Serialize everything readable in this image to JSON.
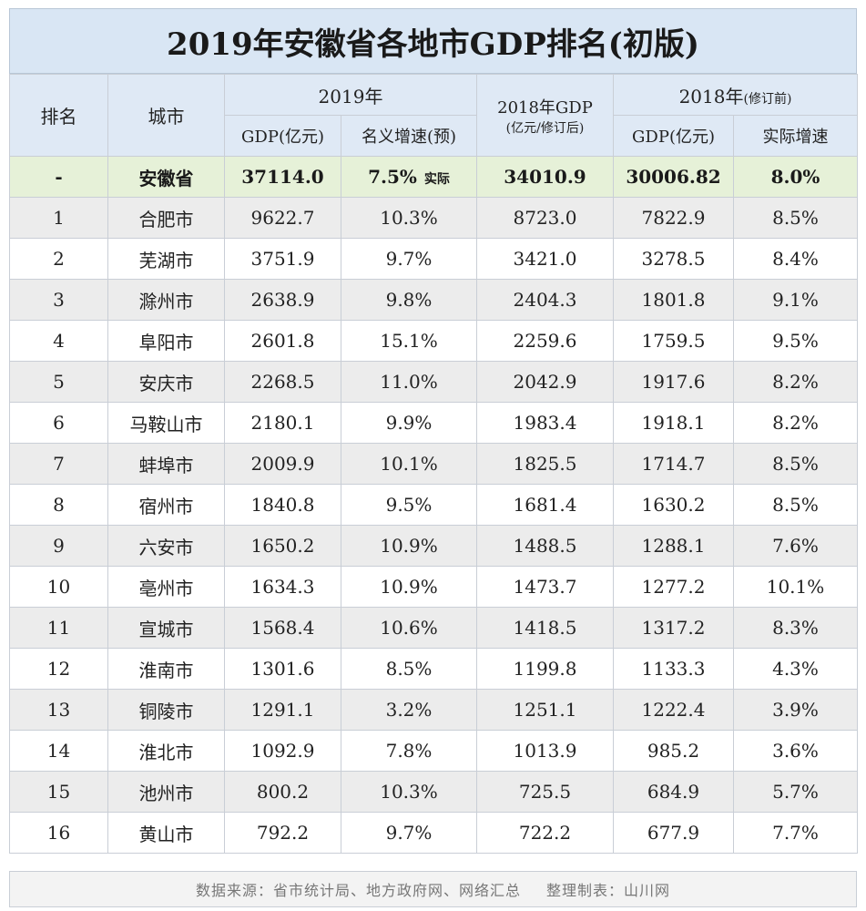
{
  "title": "2019年安徽省各地市GDP排名(初版)",
  "headers": {
    "rank": "排名",
    "city": "城市",
    "y2019": "2019年",
    "gdp2019": "GDP(亿元)",
    "growth2019": "名义增速(预)",
    "gdp2018_rev_line1": "2018年GDP",
    "gdp2018_rev_line2": "(亿元/修订后)",
    "y2018_orig": "2018年",
    "y2018_orig_note": "(修订前)",
    "gdp2018_orig": "GDP(亿元)",
    "growth2018": "实际增速"
  },
  "province": {
    "rank": "-",
    "city": "安徽省",
    "gdp2019": "37114.0",
    "growth2019": "7.5%",
    "growth2019_note": "实际",
    "gdp2018_rev": "34010.9",
    "gdp2018_orig": "30006.82",
    "growth2018": "8.0%"
  },
  "rows": [
    {
      "rank": "1",
      "city": "合肥市",
      "gdp2019": "9622.7",
      "growth2019": "10.3%",
      "gdp2018_rev": "8723.0",
      "gdp2018_orig": "7822.9",
      "growth2018": "8.5%"
    },
    {
      "rank": "2",
      "city": "芜湖市",
      "gdp2019": "3751.9",
      "growth2019": "9.7%",
      "gdp2018_rev": "3421.0",
      "gdp2018_orig": "3278.5",
      "growth2018": "8.4%"
    },
    {
      "rank": "3",
      "city": "滁州市",
      "gdp2019": "2638.9",
      "growth2019": "9.8%",
      "gdp2018_rev": "2404.3",
      "gdp2018_orig": "1801.8",
      "growth2018": "9.1%"
    },
    {
      "rank": "4",
      "city": "阜阳市",
      "gdp2019": "2601.8",
      "growth2019": "15.1%",
      "gdp2018_rev": "2259.6",
      "gdp2018_orig": "1759.5",
      "growth2018": "9.5%"
    },
    {
      "rank": "5",
      "city": "安庆市",
      "gdp2019": "2268.5",
      "growth2019": "11.0%",
      "gdp2018_rev": "2042.9",
      "gdp2018_orig": "1917.6",
      "growth2018": "8.2%"
    },
    {
      "rank": "6",
      "city": "马鞍山市",
      "gdp2019": "2180.1",
      "growth2019": "9.9%",
      "gdp2018_rev": "1983.4",
      "gdp2018_orig": "1918.1",
      "growth2018": "8.2%"
    },
    {
      "rank": "7",
      "city": "蚌埠市",
      "gdp2019": "2009.9",
      "growth2019": "10.1%",
      "gdp2018_rev": "1825.5",
      "gdp2018_orig": "1714.7",
      "growth2018": "8.5%"
    },
    {
      "rank": "8",
      "city": "宿州市",
      "gdp2019": "1840.8",
      "growth2019": "9.5%",
      "gdp2018_rev": "1681.4",
      "gdp2018_orig": "1630.2",
      "growth2018": "8.5%"
    },
    {
      "rank": "9",
      "city": "六安市",
      "gdp2019": "1650.2",
      "growth2019": "10.9%",
      "gdp2018_rev": "1488.5",
      "gdp2018_orig": "1288.1",
      "growth2018": "7.6%"
    },
    {
      "rank": "10",
      "city": "亳州市",
      "gdp2019": "1634.3",
      "growth2019": "10.9%",
      "gdp2018_rev": "1473.7",
      "gdp2018_orig": "1277.2",
      "growth2018": "10.1%"
    },
    {
      "rank": "11",
      "city": "宣城市",
      "gdp2019": "1568.4",
      "growth2019": "10.6%",
      "gdp2018_rev": "1418.5",
      "gdp2018_orig": "1317.2",
      "growth2018": "8.3%"
    },
    {
      "rank": "12",
      "city": "淮南市",
      "gdp2019": "1301.6",
      "growth2019": "8.5%",
      "gdp2018_rev": "1199.8",
      "gdp2018_orig": "1133.3",
      "growth2018": "4.3%"
    },
    {
      "rank": "13",
      "city": "铜陵市",
      "gdp2019": "1291.1",
      "growth2019": "3.2%",
      "gdp2018_rev": "1251.1",
      "gdp2018_orig": "1222.4",
      "growth2018": "3.9%"
    },
    {
      "rank": "14",
      "city": "淮北市",
      "gdp2019": "1092.9",
      "growth2019": "7.8%",
      "gdp2018_rev": "1013.9",
      "gdp2018_orig": "985.2",
      "growth2018": "3.6%"
    },
    {
      "rank": "15",
      "city": "池州市",
      "gdp2019": "800.2",
      "growth2019": "10.3%",
      "gdp2018_rev": "725.5",
      "gdp2018_orig": "684.9",
      "growth2018": "5.7%"
    },
    {
      "rank": "16",
      "city": "黄山市",
      "gdp2019": "792.2",
      "growth2019": "9.7%",
      "gdp2018_rev": "722.2",
      "gdp2018_orig": "677.9",
      "growth2018": "7.7%"
    }
  ],
  "footer": {
    "source": "数据来源：省市统计局、地方政府网、网络汇总",
    "maker": "整理制表：山川网"
  }
}
